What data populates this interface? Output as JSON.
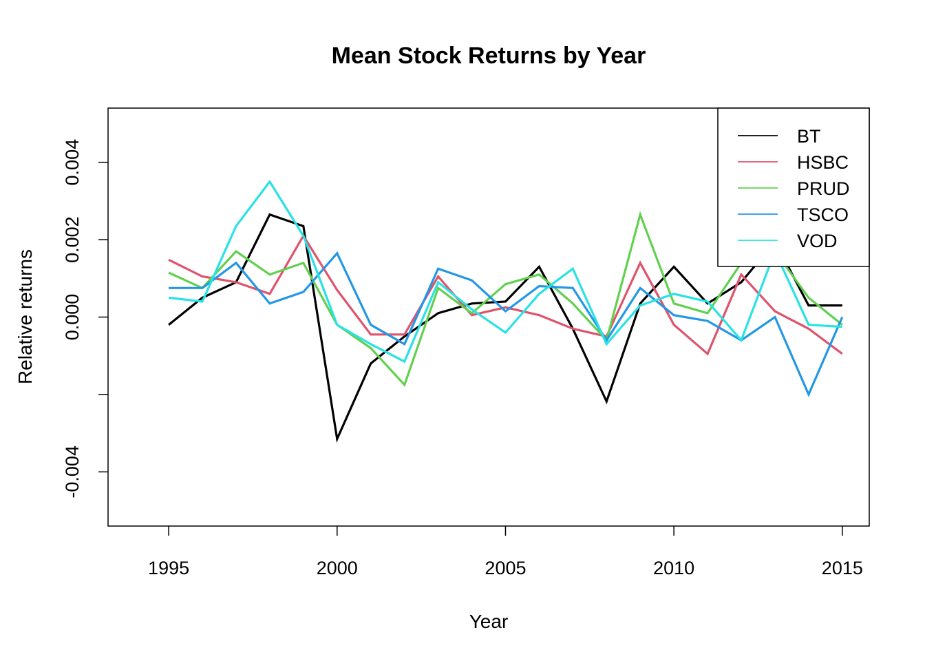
{
  "chart_data": {
    "type": "line",
    "title": "Mean Stock Returns by Year",
    "xlabel": "Year",
    "ylabel": "Relative returns",
    "xlim": [
      1993.2,
      2015.8
    ],
    "ylim": [
      -0.0054,
      0.0054
    ],
    "x_ticks": [
      1995,
      2000,
      2005,
      2010,
      2015
    ],
    "x_tick_labels": [
      "1995",
      "2000",
      "2005",
      "2010",
      "2015"
    ],
    "y_ticks": [
      -0.004,
      -0.002,
      0.0,
      0.002,
      0.004
    ],
    "y_tick_labels": [
      "-0.004",
      "",
      "0.000",
      "0.002",
      "0.004"
    ],
    "grid": false,
    "legend_position": "top-right",
    "x": [
      1995,
      1996,
      1997,
      1998,
      1999,
      2000,
      2001,
      2002,
      2003,
      2004,
      2005,
      2006,
      2007,
      2008,
      2009,
      2010,
      2011,
      2012,
      2013,
      2014,
      2015
    ],
    "series": [
      {
        "name": "BT",
        "color": "#000000",
        "values": [
          -0.0002,
          0.0005,
          0.0009,
          0.00265,
          0.00235,
          -0.00315,
          -0.0012,
          -0.0005,
          0.0001,
          0.00035,
          0.0004,
          0.0013,
          -0.0003,
          -0.00218,
          0.00035,
          0.0013,
          0.00035,
          0.0009,
          0.00195,
          0.0003,
          0.0003
        ]
      },
      {
        "name": "HSBC",
        "color": "#DF536B",
        "values": [
          0.00148,
          0.00105,
          0.0009,
          0.0006,
          0.0021,
          0.0007,
          -0.00045,
          -0.00045,
          0.00105,
          5e-05,
          0.00025,
          5e-05,
          -0.0003,
          -0.0005,
          0.0014,
          -0.0002,
          -0.00095,
          0.0011,
          0.00015,
          -0.0003,
          -0.00095
        ]
      },
      {
        "name": "PRUD",
        "color": "#61D04F",
        "values": [
          0.00115,
          0.00075,
          0.0017,
          0.0011,
          0.0014,
          -0.0002,
          -0.0008,
          -0.00175,
          0.00075,
          0.0001,
          0.00085,
          0.0011,
          0.00035,
          -0.0006,
          0.00265,
          0.00035,
          0.0001,
          0.0014,
          0.0017,
          0.0005,
          -0.0002
        ]
      },
      {
        "name": "TSCO",
        "color": "#2297E6",
        "values": [
          0.00075,
          0.00075,
          0.0014,
          0.00035,
          0.00065,
          0.00165,
          -0.0002,
          -0.0007,
          0.00125,
          0.00095,
          0.00015,
          0.0008,
          0.00075,
          -0.0006,
          0.00075,
          5e-05,
          -0.0001,
          -0.0006,
          0.0,
          -0.002,
          0.0
        ]
      },
      {
        "name": "VOD",
        "color": "#28E2E5",
        "values": [
          0.0005,
          0.0004,
          0.00235,
          0.0035,
          0.0021,
          -0.0002,
          -0.0007,
          -0.00115,
          0.0009,
          0.0002,
          -0.0004,
          0.0006,
          0.00125,
          -0.0007,
          0.0003,
          0.0006,
          0.0004,
          -0.0006,
          0.0017,
          -0.0002,
          -0.00025
        ]
      }
    ]
  }
}
